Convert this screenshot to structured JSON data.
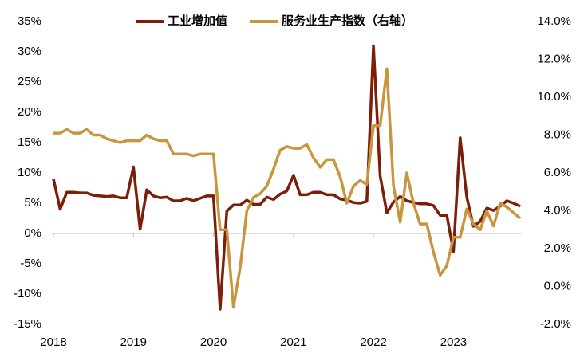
{
  "chart_data": {
    "type": "line",
    "categories": [
      "2018",
      null,
      null,
      null,
      null,
      null,
      null,
      null,
      null,
      null,
      null,
      null,
      "2019",
      null,
      null,
      null,
      null,
      null,
      null,
      null,
      null,
      null,
      null,
      null,
      "2020",
      null,
      null,
      null,
      null,
      null,
      null,
      null,
      null,
      null,
      null,
      null,
      "2021",
      null,
      null,
      null,
      null,
      null,
      null,
      null,
      null,
      null,
      null,
      null,
      "2022",
      null,
      null,
      null,
      null,
      null,
      null,
      null,
      null,
      null,
      null,
      null,
      "2023",
      null,
      null,
      null,
      null,
      null,
      null,
      null,
      null,
      null,
      null
    ],
    "series": [
      {
        "name": "工业增加值",
        "color": "#7b1e0a",
        "axis": "y",
        "values": [
          9.0,
          4.0,
          6.8,
          6.8,
          6.7,
          6.7,
          6.3,
          6.2,
          6.1,
          6.2,
          5.9,
          5.9,
          11.0,
          0.7,
          7.2,
          6.2,
          5.9,
          6.0,
          5.4,
          5.4,
          5.8,
          5.4,
          5.8,
          6.2,
          6.2,
          -12.5,
          3.7,
          4.7,
          4.7,
          5.5,
          4.8,
          4.8,
          6.0,
          5.6,
          6.5,
          7.0,
          9.6,
          6.4,
          6.4,
          6.8,
          6.8,
          6.4,
          6.4,
          5.7,
          5.5,
          5.1,
          5.0,
          5.3,
          31.0,
          9.5,
          3.4,
          5.2,
          6.1,
          5.4,
          5.1,
          4.9,
          4.9,
          4.6,
          3.0,
          3.0,
          -3.0,
          15.8,
          6.0,
          1.2,
          2.0,
          4.2,
          3.8,
          4.5,
          5.4,
          5.0,
          4.5
        ]
      },
      {
        "name": "服务业生产指数（右轴）",
        "color": "#c8963e",
        "axis": "y2",
        "values": [
          8.1,
          8.1,
          8.3,
          8.1,
          8.1,
          8.3,
          8.0,
          8.0,
          7.8,
          7.7,
          7.6,
          7.7,
          7.7,
          7.7,
          8.0,
          7.8,
          7.7,
          7.7,
          7.0,
          7.0,
          7.0,
          6.9,
          7.0,
          7.0,
          7.0,
          3.0,
          3.0,
          -1.1,
          1.0,
          4.0,
          4.7,
          4.9,
          5.3,
          6.2,
          7.2,
          7.4,
          7.3,
          7.3,
          7.5,
          6.8,
          6.3,
          6.7,
          6.7,
          5.8,
          4.4,
          5.3,
          5.6,
          5.4,
          8.5,
          8.5,
          11.5,
          5.3,
          3.4,
          6.0,
          4.4,
          3.3,
          3.3,
          1.8,
          0.6,
          1.1,
          2.6,
          2.6,
          4.1,
          3.3,
          3.0,
          4.0,
          3.2,
          4.4,
          4.2,
          3.9,
          3.6
        ]
      }
    ],
    "ylim": [
      -15,
      35
    ],
    "yticks": [
      {
        "value": -15,
        "label": "-15%"
      },
      {
        "value": -10,
        "label": "-10%"
      },
      {
        "value": -5,
        "label": "-5%"
      },
      {
        "value": 0,
        "label": "0%"
      },
      {
        "value": 5,
        "label": "5%"
      },
      {
        "value": 10,
        "label": "10%"
      },
      {
        "value": 15,
        "label": "15%"
      },
      {
        "value": 20,
        "label": "20%"
      },
      {
        "value": 25,
        "label": "25%"
      },
      {
        "value": 30,
        "label": "30%"
      },
      {
        "value": 35,
        "label": "35%"
      }
    ],
    "y2lim": [
      -2,
      14
    ],
    "y2ticks": [
      {
        "value": -2,
        "label": "-2.0%"
      },
      {
        "value": 0,
        "label": "0.0%"
      },
      {
        "value": 2,
        "label": "2.0%"
      },
      {
        "value": 4,
        "label": "4.0%"
      },
      {
        "value": 6,
        "label": "6.0%"
      },
      {
        "value": 8,
        "label": "8.0%"
      },
      {
        "value": 10,
        "label": "10.0%"
      },
      {
        "value": 12,
        "label": "12.0%"
      },
      {
        "value": 14,
        "label": "14.0%"
      }
    ],
    "legend": "top"
  }
}
